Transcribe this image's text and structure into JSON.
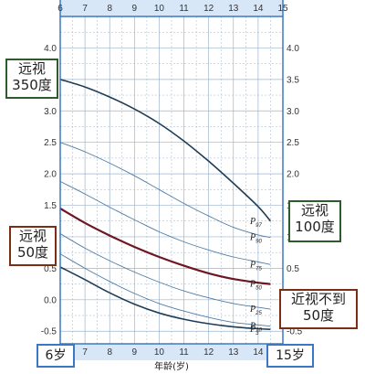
{
  "chart_data": {
    "type": "line",
    "xlabel": "年龄(岁)",
    "x_ticks": [
      "6",
      "7",
      "8",
      "9",
      "10",
      "11",
      "12",
      "13",
      "14",
      "15"
    ],
    "y_ticks": [
      "-0.5",
      "0.0",
      "0.5",
      "1.0",
      "1.5",
      "2.0",
      "2.5",
      "3.0",
      "3.5",
      "4.0"
    ],
    "xlim": [
      6,
      15
    ],
    "ylim": [
      -0.7,
      4.5
    ],
    "grid": true,
    "x": [
      6,
      7,
      8,
      9,
      10,
      11,
      12,
      13,
      14,
      14.5
    ],
    "series": [
      {
        "name": "P97",
        "style": "dark-navy",
        "values": [
          3.5,
          3.38,
          3.22,
          3.03,
          2.8,
          2.52,
          2.2,
          1.85,
          1.48,
          1.25
        ]
      },
      {
        "name": "P90",
        "style": "thin-blue",
        "values": [
          2.5,
          2.35,
          2.17,
          1.97,
          1.75,
          1.53,
          1.33,
          1.15,
          1.03,
          0.99
        ]
      },
      {
        "name": "P75",
        "style": "thin-blue",
        "values": [
          1.88,
          1.68,
          1.47,
          1.27,
          1.08,
          0.92,
          0.79,
          0.68,
          0.6,
          0.56
        ]
      },
      {
        "name": "P50",
        "style": "dark-red",
        "values": [
          1.45,
          1.22,
          1.02,
          0.84,
          0.68,
          0.54,
          0.42,
          0.33,
          0.27,
          0.25
        ]
      },
      {
        "name": "P25",
        "style": "thin-blue",
        "values": [
          1.05,
          0.82,
          0.62,
          0.44,
          0.28,
          0.14,
          0.03,
          -0.06,
          -0.12,
          -0.15
        ]
      },
      {
        "name": "P10",
        "style": "thin-blue",
        "values": [
          0.73,
          0.5,
          0.29,
          0.1,
          -0.06,
          -0.18,
          -0.28,
          -0.36,
          -0.4,
          -0.42
        ]
      },
      {
        "name": "P3",
        "style": "dark-navy",
        "values": [
          0.52,
          0.32,
          0.11,
          -0.07,
          -0.21,
          -0.31,
          -0.38,
          -0.43,
          -0.46,
          -0.47
        ]
      }
    ],
    "percentile_labels": [
      {
        "letter": "P",
        "sub": "97"
      },
      {
        "letter": "P",
        "sub": "90"
      },
      {
        "letter": "P",
        "sub": "75"
      },
      {
        "letter": "P",
        "sub": "50"
      },
      {
        "letter": "P",
        "sub": "25"
      },
      {
        "letter": "P",
        "sub": "10"
      },
      {
        "letter": "P",
        "sub": "3"
      }
    ]
  },
  "colors": {
    "axis": "#3a78c4",
    "grid": "#9fb4cc",
    "dark_navy": "#1e3d56",
    "thin_blue": "#4f7da6",
    "dark_red": "#6e1622",
    "green_border": "#2f5a2c",
    "brown_border": "#7a2e12",
    "blue_border": "#3a78c4",
    "axis_strip": "#d7e7f7"
  },
  "callouts": {
    "far_350": {
      "line1": "远视",
      "line2": "350度"
    },
    "far_100": {
      "line1": "远视",
      "line2": "100度"
    },
    "far_50": {
      "line1": "远视",
      "line2": "50度"
    },
    "below_50": {
      "line1": "近视不到",
      "line2": "50度"
    }
  },
  "age_start": "6岁",
  "age_end": "15岁"
}
